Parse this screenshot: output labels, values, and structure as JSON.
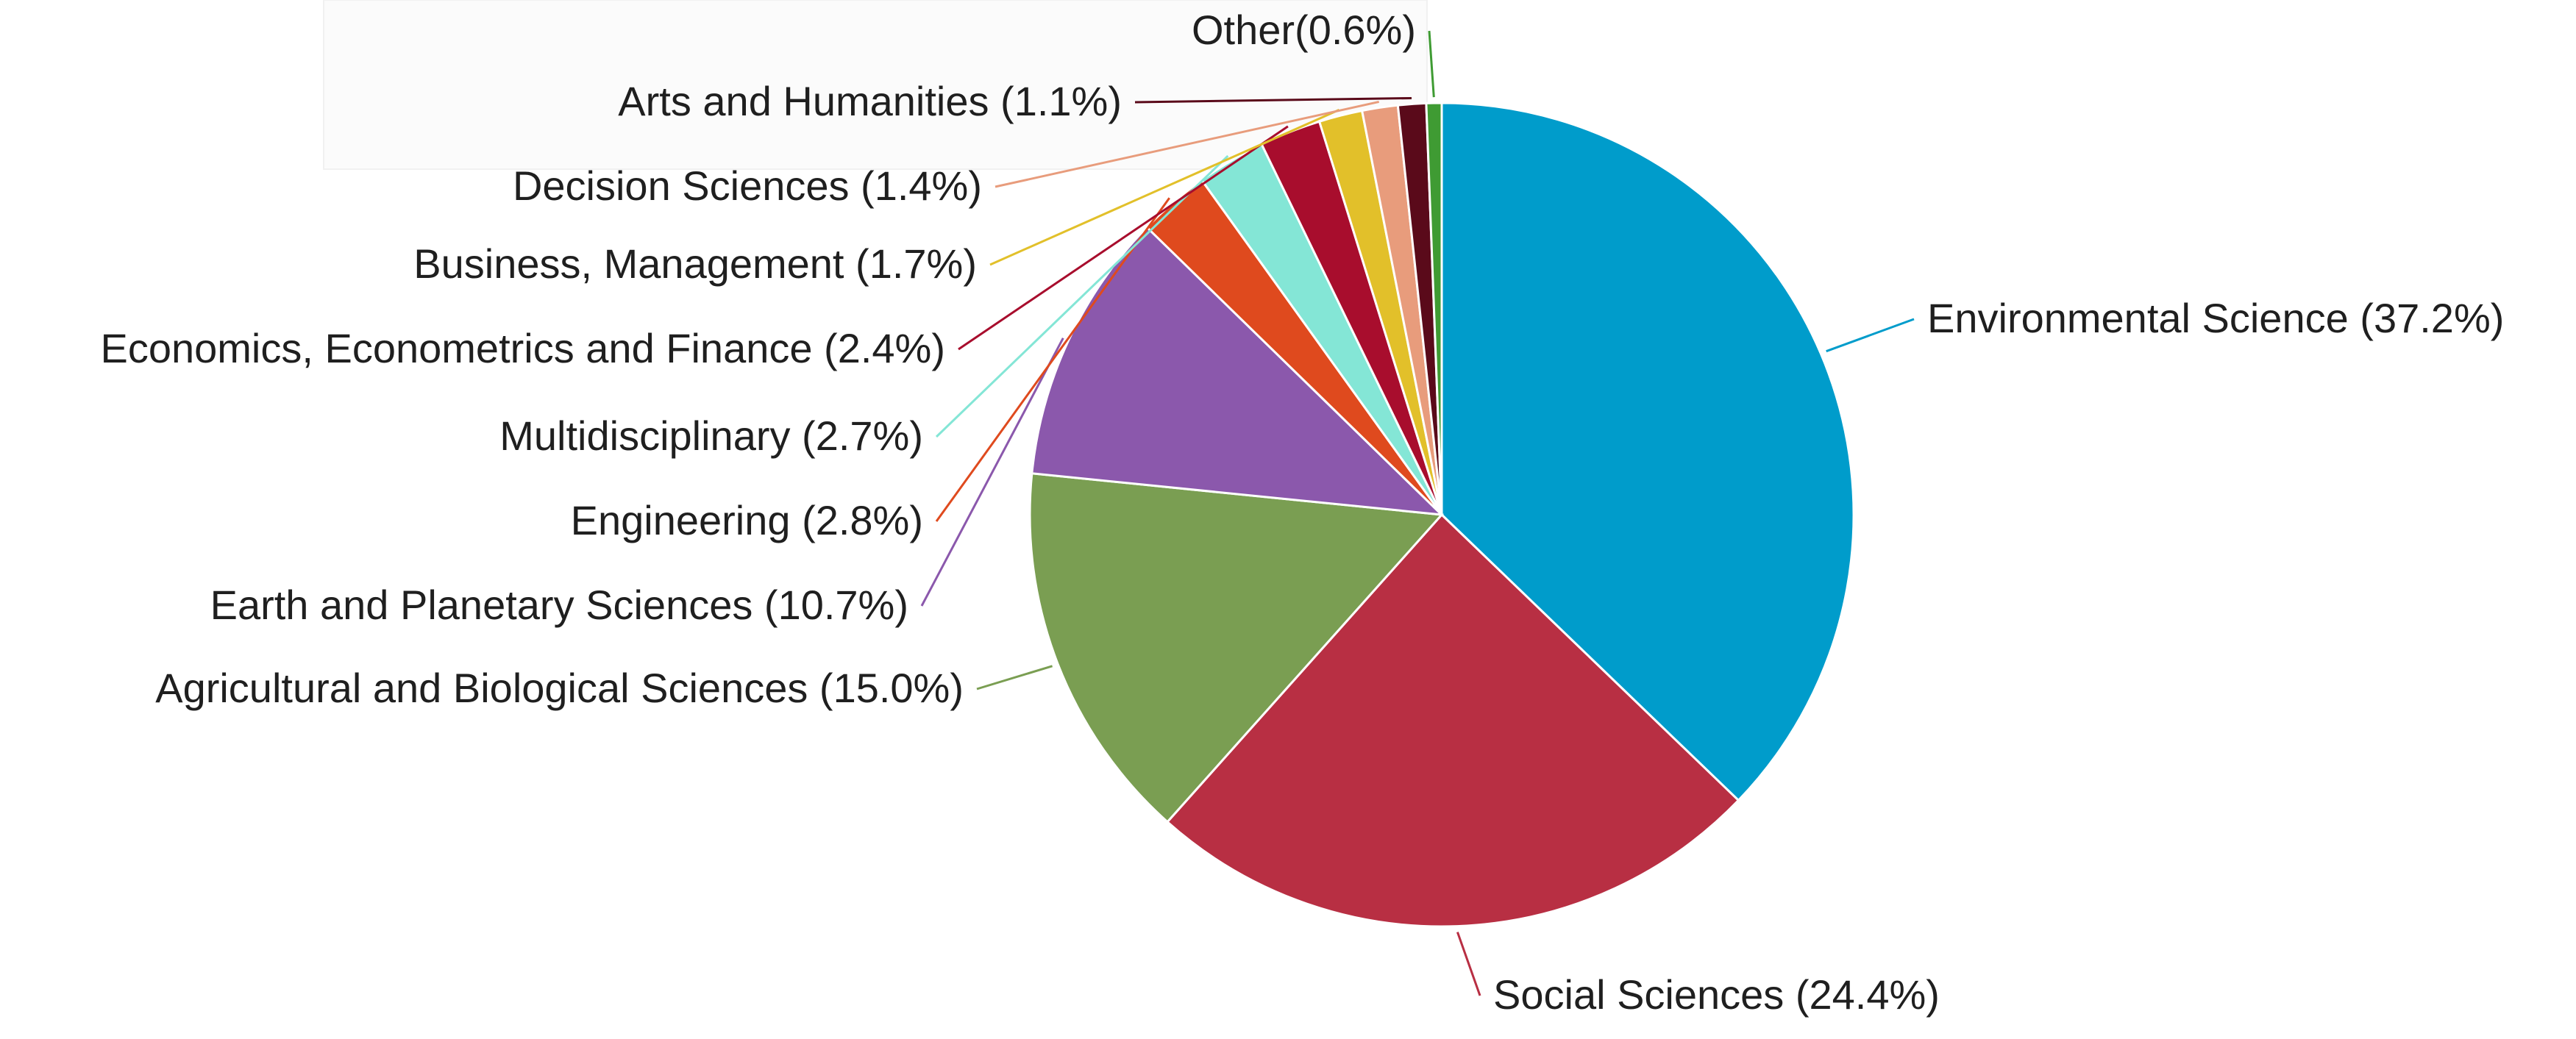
{
  "chart_data": {
    "type": "pie",
    "title": "",
    "slices": [
      {
        "label": "Environmental Science (37.2%)",
        "value": 37.2,
        "color": "#009ccb"
      },
      {
        "label": "Social Sciences (24.4%)",
        "value": 24.4,
        "color": "#b82f43"
      },
      {
        "label": "Agricultural and Biological Sciences (15.0%)",
        "value": 15.0,
        "color": "#7a9e52"
      },
      {
        "label": "Earth and Planetary Sciences (10.7%)",
        "value": 10.7,
        "color": "#8b58ac"
      },
      {
        "label": "Engineering (2.8%)",
        "value": 2.8,
        "color": "#df4a1e"
      },
      {
        "label": "Multidisciplinary (2.7%)",
        "value": 2.7,
        "color": "#84e6d6"
      },
      {
        "label": "Economics, Econometrics and Finance (2.4%)",
        "value": 2.4,
        "color": "#a80d2d"
      },
      {
        "label": "Business, Management (1.7%)",
        "value": 1.7,
        "color": "#e2c02a"
      },
      {
        "label": "Decision Sciences (1.4%)",
        "value": 1.4,
        "color": "#e89c7c"
      },
      {
        "label": "Arts and Humanities (1.1%)",
        "value": 1.1,
        "color": "#5a0a1a"
      },
      {
        "label": "Other(0.6%)",
        "value": 0.6,
        "color": "#3f9b33"
      }
    ]
  }
}
